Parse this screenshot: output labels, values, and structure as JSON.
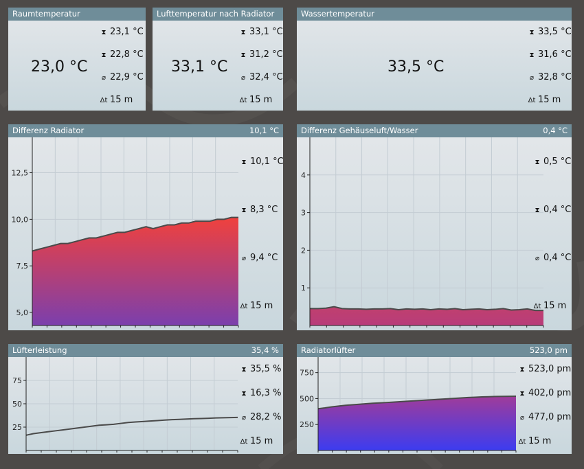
{
  "panels": {
    "raum": {
      "title": "Raumtemperatur",
      "value": "23,0 °C",
      "max": "23,1 °C",
      "min": "22,8 °C",
      "avg": "22,9 °C",
      "dt": "15 m"
    },
    "luft": {
      "title": "Lufttemperatur nach Radiator",
      "value": "33,1 °C",
      "max": "33,1 °C",
      "min": "31,2 °C",
      "avg": "32,4 °C",
      "dt": "15 m"
    },
    "wasser": {
      "title": "Wassertemperatur",
      "value": "33,5 °C",
      "max": "33,5 °C",
      "min": "31,6 °C",
      "avg": "32,8 °C",
      "dt": "15 m"
    },
    "diffrad": {
      "title": "Differenz Radiator",
      "current": "10,1 °C",
      "max": "10,1 °C",
      "min": "8,3 °C",
      "avg": "9,4 °C",
      "dt": "15 m"
    },
    "diffgeh": {
      "title": "Differenz Gehäuseluft/Wasser",
      "current": "0,4 °C",
      "max": "0,5 °C",
      "min": "0,4 °C",
      "avg": "0,4 °C",
      "dt": "15 m"
    },
    "luefter": {
      "title": "Lüfterleistung",
      "current": "35,4 %",
      "max": "35,5 %",
      "min": "16,3 %",
      "avg": "28,2 %",
      "dt": "15 m"
    },
    "radluef": {
      "title": "Radiatorlüfter",
      "current": "523,0 pm",
      "max": "523,0 pm",
      "min": "402,0 pm",
      "avg": "477,0 pm",
      "dt": "15 m"
    }
  },
  "icons": {
    "max": "max-icon",
    "min": "min-icon",
    "avg": "avg-icon",
    "dt": "delta-t-icon"
  },
  "colors": {
    "header": "#6f8d99",
    "fill_warm_top": "#f0413d",
    "fill_warm_bottom": "#7b3fad",
    "fill_cool_top": "#a03c9a",
    "fill_cool_bottom": "#3c3cf0"
  },
  "chart_data": [
    {
      "id": "diffrad",
      "type": "area",
      "ylim": [
        4.3,
        14.4
      ],
      "yticks": [
        "5,0",
        "7,5",
        "10,0",
        "12,5"
      ],
      "ytick_values": [
        5,
        7.5,
        10,
        12.5
      ],
      "values": [
        8.3,
        8.4,
        8.5,
        8.6,
        8.7,
        8.7,
        8.8,
        8.9,
        9.0,
        9.0,
        9.1,
        9.2,
        9.3,
        9.3,
        9.4,
        9.5,
        9.6,
        9.5,
        9.6,
        9.7,
        9.7,
        9.8,
        9.8,
        9.9,
        9.9,
        9.9,
        10.0,
        10.0,
        10.1,
        10.1
      ]
    },
    {
      "id": "diffgeh",
      "type": "area",
      "ylim": [
        0,
        5
      ],
      "yticks": [
        "1",
        "2",
        "3",
        "4"
      ],
      "ytick_values": [
        1,
        2,
        3,
        4
      ],
      "values": [
        0.45,
        0.45,
        0.46,
        0.5,
        0.45,
        0.44,
        0.44,
        0.43,
        0.44,
        0.44,
        0.45,
        0.42,
        0.44,
        0.43,
        0.44,
        0.42,
        0.44,
        0.43,
        0.45,
        0.42,
        0.43,
        0.44,
        0.42,
        0.43,
        0.45,
        0.41,
        0.42,
        0.44,
        0.4,
        0.4
      ]
    },
    {
      "id": "luefter",
      "type": "area",
      "ylim": [
        0,
        100
      ],
      "yticks": [
        "25",
        "50",
        "75"
      ],
      "ytick_values": [
        25,
        50,
        75
      ],
      "values": [
        16.3,
        18,
        19,
        20,
        21,
        22,
        23,
        24,
        25,
        26,
        27,
        27.5,
        28,
        29,
        30,
        30.5,
        31,
        31.5,
        32,
        32.5,
        33,
        33.3,
        33.6,
        34,
        34.2,
        34.5,
        34.8,
        35,
        35.2,
        35.4
      ]
    },
    {
      "id": "radluef",
      "type": "area",
      "ylim": [
        0,
        900
      ],
      "yticks": [
        "250",
        "500",
        "750"
      ],
      "ytick_values": [
        250,
        500,
        750
      ],
      "values": [
        402,
        410,
        420,
        428,
        435,
        440,
        445,
        450,
        455,
        458,
        462,
        466,
        470,
        474,
        478,
        482,
        486,
        490,
        494,
        498,
        502,
        506,
        510,
        513,
        516,
        518,
        520,
        521,
        522,
        523
      ]
    }
  ]
}
